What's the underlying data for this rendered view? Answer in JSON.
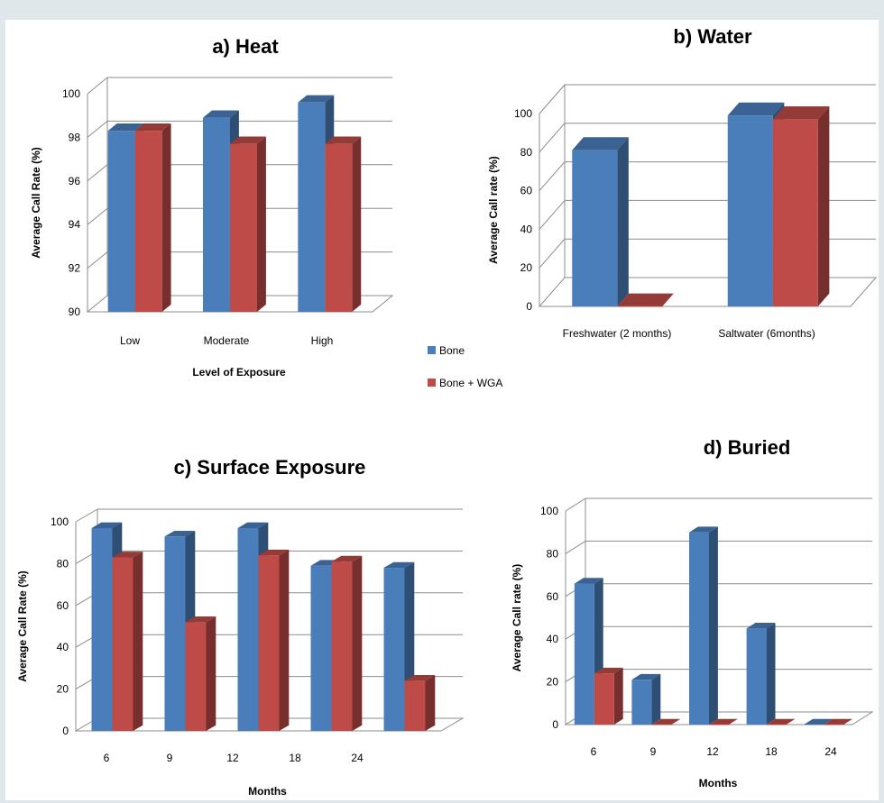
{
  "colors": {
    "bone": "#4a7ebb",
    "bone_wga": "#be4b48",
    "grid": "#8c8c8c",
    "frame_bg": "#dfe7ea"
  },
  "legend": {
    "items": [
      {
        "label": "Bone",
        "color": "#4a7ebb"
      },
      {
        "label": "Bone + WGA",
        "color": "#be4b48"
      }
    ],
    "placement": "center"
  },
  "chart_data": [
    {
      "id": "heat",
      "type": "bar",
      "title": "a)  Heat",
      "xlabel": "Level of Exposure",
      "ylabel": "Average Call Rate (%)",
      "categories": [
        "Low",
        "Moderate",
        "High"
      ],
      "ylim": [
        90,
        100
      ],
      "yticks": [
        "90",
        "92",
        "94",
        "96",
        "98",
        "100"
      ],
      "grid": true,
      "series": [
        {
          "name": "Bone",
          "values": [
            98.3,
            98.9,
            99.6
          ]
        },
        {
          "name": "Bone + WGA",
          "values": [
            98.3,
            97.7,
            97.7
          ]
        }
      ]
    },
    {
      "id": "water",
      "type": "bar",
      "title": "b)  Water",
      "xlabel": "",
      "ylabel": "Average Call rate (%)",
      "categories": [
        "Freshwater (2 months)",
        "Saltwater (6months)"
      ],
      "ylim": [
        0,
        100
      ],
      "yticks": [
        "0",
        "20",
        "40",
        "60",
        "80",
        "100"
      ],
      "grid": true,
      "series": [
        {
          "name": "Bone",
          "values": [
            81,
            99
          ]
        },
        {
          "name": "Bone + WGA",
          "values": [
            0,
            97
          ]
        }
      ]
    },
    {
      "id": "surface",
      "type": "bar",
      "title": "c)  Surface Exposure",
      "xlabel": "Months",
      "ylabel": "Average Call Rate (%)",
      "categories": [
        "6",
        "9",
        "12",
        "18",
        "24"
      ],
      "ylim": [
        0,
        100
      ],
      "yticks": [
        "0",
        "20",
        "40",
        "60",
        "80",
        "100"
      ],
      "grid": true,
      "series": [
        {
          "name": "Bone",
          "values": [
            97,
            93,
            97,
            79,
            78
          ]
        },
        {
          "name": "Bone + WGA",
          "values": [
            83,
            52,
            84,
            81,
            24
          ]
        }
      ]
    },
    {
      "id": "buried",
      "type": "bar",
      "title": "d)  Buried",
      "xlabel": "Months",
      "ylabel": "Average Call rate (%)",
      "categories": [
        "6",
        "9",
        "12",
        "18",
        "24"
      ],
      "ylim": [
        0,
        100
      ],
      "yticks": [
        "0",
        "20",
        "40",
        "60",
        "80",
        "100"
      ],
      "grid": true,
      "series": [
        {
          "name": "Bone",
          "values": [
            66,
            21,
            90,
            45,
            0
          ]
        },
        {
          "name": "Bone + WGA",
          "values": [
            24,
            0,
            0,
            0,
            0
          ]
        }
      ]
    }
  ]
}
